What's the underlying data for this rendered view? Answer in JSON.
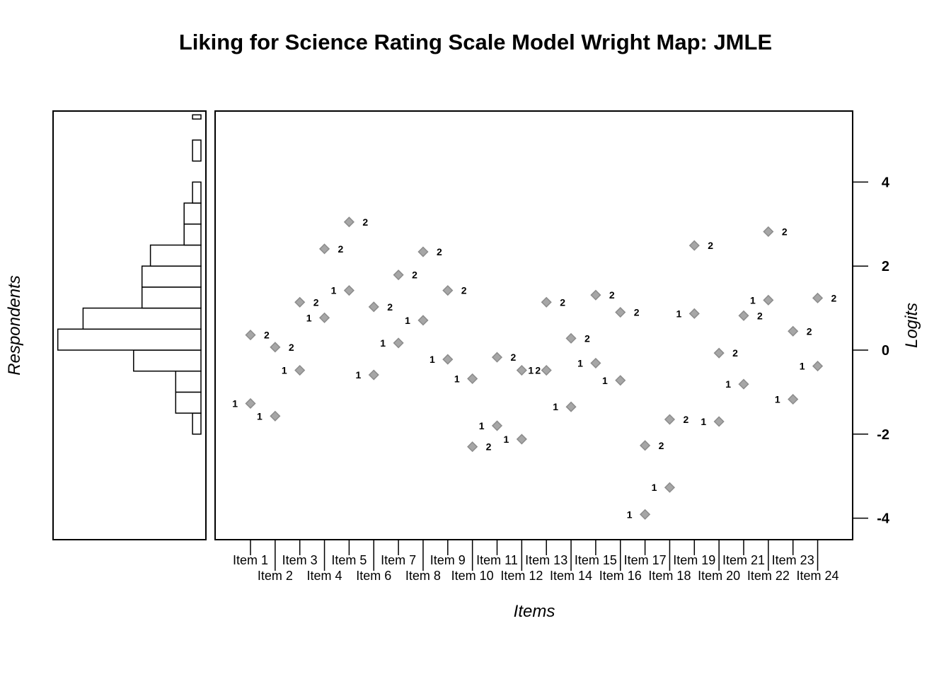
{
  "chart_data": {
    "type": "scatter",
    "title": "Liking for Science Rating Scale Model Wright Map: JMLE",
    "xlabel": "Items",
    "ylabel": "Logits",
    "person_label": "Respondents",
    "ylim": [
      -4.5,
      5.6
    ],
    "yticks": [
      -4,
      -2,
      0,
      2,
      4
    ],
    "grid": false,
    "colors": {
      "points": "#a6a6a6",
      "point_edge": "#8c8c8c",
      "axes": "#000000",
      "bars": "#ffffff"
    },
    "categories": [
      "Item 1",
      "Item 2",
      "Item 3",
      "Item 4",
      "Item 5",
      "Item 6",
      "Item 7",
      "Item 8",
      "Item 9",
      "Item 10",
      "Item 11",
      "Item 12",
      "Item 13",
      "Item 14",
      "Item 15",
      "Item 16",
      "Item 17",
      "Item 18",
      "Item 19",
      "Item 20",
      "Item 21",
      "Item 22",
      "Item 23",
      "Item 24"
    ],
    "threshold_labels": [
      "1",
      "2"
    ],
    "thresholds": [
      [
        -1.27,
        0.36
      ],
      [
        -1.57,
        0.07
      ],
      [
        -0.48,
        1.14
      ],
      [
        0.77,
        2.41
      ],
      [
        1.42,
        3.05
      ],
      [
        -0.59,
        1.03
      ],
      [
        0.17,
        1.79
      ],
      [
        0.71,
        2.34
      ],
      [
        -0.22,
        1.42
      ],
      [
        -0.68,
        -2.3
      ],
      [
        -1.8,
        -0.17
      ],
      [
        -2.12,
        -0.48
      ],
      [
        -0.48,
        1.14
      ],
      [
        -1.35,
        0.28
      ],
      [
        -0.31,
        1.31
      ],
      [
        -0.72,
        0.9
      ],
      [
        -3.91,
        -2.27
      ],
      [
        -3.27,
        -1.65
      ],
      [
        0.87,
        2.49
      ],
      [
        -1.7,
        -0.07
      ],
      [
        -0.81,
        0.82
      ],
      [
        1.19,
        2.82
      ],
      [
        -1.17,
        0.45
      ],
      [
        -0.38,
        1.24
      ]
    ],
    "person_histogram": {
      "bin_width": 0.5,
      "bins": [
        {
          "from": -2.0,
          "to": -1.5,
          "count": 1
        },
        {
          "from": -1.5,
          "to": -1.0,
          "count": 3
        },
        {
          "from": -1.0,
          "to": -0.5,
          "count": 3
        },
        {
          "from": -0.5,
          "to": 0.0,
          "count": 8
        },
        {
          "from": 0.0,
          "to": 0.5,
          "count": 17
        },
        {
          "from": 0.5,
          "to": 1.0,
          "count": 14
        },
        {
          "from": 1.0,
          "to": 1.5,
          "count": 7
        },
        {
          "from": 1.5,
          "to": 2.0,
          "count": 7
        },
        {
          "from": 2.0,
          "to": 2.5,
          "count": 6
        },
        {
          "from": 2.5,
          "to": 3.0,
          "count": 2
        },
        {
          "from": 3.0,
          "to": 3.5,
          "count": 2
        },
        {
          "from": 3.5,
          "to": 4.0,
          "count": 1
        },
        {
          "from": 4.0,
          "to": 4.5,
          "count": 0
        },
        {
          "from": 4.5,
          "to": 5.0,
          "count": 1
        },
        {
          "from": 5.0,
          "to": 5.5,
          "count": 0
        },
        {
          "from": 5.5,
          "to": 5.6,
          "count": 1
        }
      ]
    }
  }
}
